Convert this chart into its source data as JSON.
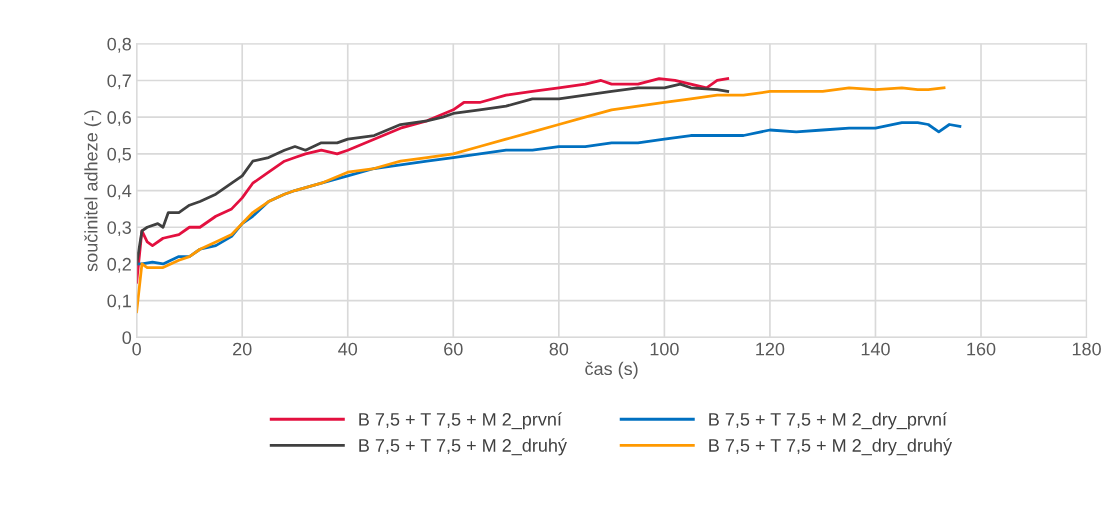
{
  "chart_data": {
    "type": "line",
    "xlabel": "čas (s)",
    "ylabel": "součinitel adheze (-)",
    "xlim": [
      0,
      180
    ],
    "xticks": [
      0,
      20,
      40,
      60,
      80,
      100,
      120,
      140,
      160,
      180
    ],
    "ylim": [
      0,
      0.8
    ],
    "yticks": [
      {
        "value": 0,
        "label": "0"
      },
      {
        "value": 0.1,
        "label": "0,1"
      },
      {
        "value": 0.2,
        "label": "0,2"
      },
      {
        "value": 0.3,
        "label": "0,3"
      },
      {
        "value": 0.4,
        "label": "0,4"
      },
      {
        "value": 0.5,
        "label": "0,5"
      },
      {
        "value": 0.6,
        "label": "0,6"
      },
      {
        "value": 0.7,
        "label": "0,7"
      },
      {
        "value": 0.8,
        "label": "0,8"
      }
    ],
    "grid": true,
    "legend": "bottom",
    "marker": "none",
    "line_style": "solid",
    "series": [
      {
        "name": "B 7,5 + T 7,5 + M 2_první",
        "color": "#e3103f",
        "x": [
          0,
          1,
          2,
          3,
          5,
          8,
          10,
          12,
          15,
          18,
          20,
          22,
          25,
          28,
          30,
          32,
          35,
          38,
          40,
          45,
          50,
          55,
          60,
          62,
          65,
          70,
          75,
          80,
          85,
          88,
          90,
          95,
          99,
          102,
          105,
          108,
          110,
          112
        ],
        "values": [
          0.15,
          0.29,
          0.26,
          0.25,
          0.27,
          0.28,
          0.3,
          0.3,
          0.33,
          0.35,
          0.38,
          0.42,
          0.45,
          0.48,
          0.49,
          0.5,
          0.51,
          0.5,
          0.51,
          0.54,
          0.57,
          0.59,
          0.62,
          0.64,
          0.64,
          0.66,
          0.67,
          0.68,
          0.69,
          0.7,
          0.69,
          0.69,
          0.705,
          0.7,
          0.69,
          0.68,
          0.7,
          0.705
        ]
      },
      {
        "name": "B 7,5 + T 7,5 + M 2_dry_první",
        "color": "#0070c0",
        "x": [
          0,
          1,
          3,
          5,
          8,
          10,
          12,
          15,
          18,
          20,
          22,
          25,
          28,
          30,
          35,
          40,
          45,
          50,
          55,
          60,
          65,
          70,
          75,
          80,
          85,
          90,
          95,
          100,
          105,
          110,
          115,
          120,
          125,
          130,
          135,
          140,
          145,
          148,
          150,
          152,
          154,
          156
        ],
        "values": [
          0.2,
          0.2,
          0.205,
          0.2,
          0.22,
          0.22,
          0.24,
          0.25,
          0.275,
          0.31,
          0.33,
          0.37,
          0.39,
          0.4,
          0.42,
          0.44,
          0.46,
          0.47,
          0.48,
          0.49,
          0.5,
          0.51,
          0.51,
          0.52,
          0.52,
          0.53,
          0.53,
          0.54,
          0.55,
          0.55,
          0.55,
          0.565,
          0.56,
          0.565,
          0.57,
          0.57,
          0.585,
          0.585,
          0.58,
          0.56,
          0.58,
          0.575
        ]
      },
      {
        "name": "B 7,5 + T 7,5 + M 2_druhý",
        "color": "#404040",
        "x": [
          0,
          1,
          2,
          4,
          5,
          6,
          8,
          10,
          12,
          15,
          18,
          20,
          22,
          25,
          28,
          30,
          32,
          35,
          38,
          40,
          45,
          50,
          55,
          58,
          60,
          65,
          70,
          75,
          80,
          85,
          90,
          95,
          100,
          103,
          105,
          110,
          112
        ],
        "values": [
          0.2,
          0.29,
          0.3,
          0.31,
          0.3,
          0.34,
          0.34,
          0.36,
          0.37,
          0.39,
          0.42,
          0.44,
          0.48,
          0.49,
          0.51,
          0.52,
          0.51,
          0.53,
          0.53,
          0.54,
          0.55,
          0.58,
          0.59,
          0.6,
          0.61,
          0.62,
          0.63,
          0.65,
          0.65,
          0.66,
          0.67,
          0.68,
          0.68,
          0.69,
          0.68,
          0.675,
          0.67
        ]
      },
      {
        "name": "B 7,5 + T 7,5 + M 2_dry_druhý",
        "color": "#ff9900",
        "x": [
          0,
          1,
          2,
          5,
          8,
          10,
          12,
          15,
          18,
          20,
          22,
          25,
          28,
          30,
          35,
          40,
          45,
          50,
          55,
          60,
          65,
          70,
          75,
          80,
          85,
          90,
          95,
          100,
          105,
          110,
          115,
          120,
          125,
          130,
          135,
          140,
          145,
          148,
          150,
          153
        ],
        "values": [
          0.07,
          0.2,
          0.19,
          0.19,
          0.21,
          0.22,
          0.24,
          0.26,
          0.28,
          0.31,
          0.34,
          0.37,
          0.39,
          0.4,
          0.42,
          0.45,
          0.46,
          0.48,
          0.49,
          0.5,
          0.52,
          0.54,
          0.56,
          0.58,
          0.6,
          0.62,
          0.63,
          0.64,
          0.65,
          0.66,
          0.66,
          0.67,
          0.67,
          0.67,
          0.68,
          0.675,
          0.68,
          0.675,
          0.675,
          0.68
        ]
      }
    ]
  }
}
